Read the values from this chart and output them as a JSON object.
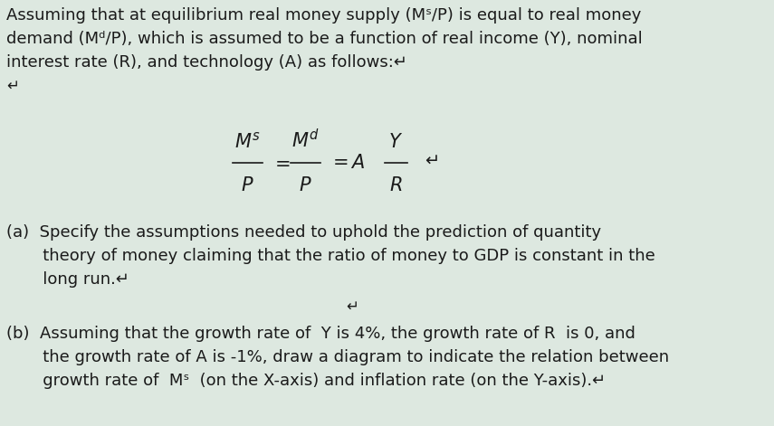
{
  "background_color": "#dde8e0",
  "text_color": "#1a1a1a",
  "figsize": [
    8.55,
    4.71
  ],
  "dpi": 100,
  "line1": "Assuming that at equilibrium real money supply (Mˢ/P) is equal to real money",
  "line2": "demand (Mᵈ/P), which is assumed to be a function of real income (Y), nominal",
  "line3": "interest rate (R), and technology (A) as follows:↵",
  "para_a_line1": "(a)  Specify the assumptions needed to uphold the prediction of quantity",
  "para_a_line2": "       theory of money claiming that the ratio of money to GDP is constant in the",
  "para_a_line3": "       long run.↵",
  "para_b_line1": "(b)  Assuming that the growth rate of  Y is 4%, the growth rate of R  is 0, and",
  "para_b_line2": "       the growth rate of A is -1%, draw a diagram to indicate the relation between",
  "para_b_line3": "       growth rate of  Mˢ  (on the X-axis) and inflation rate (on the Y-axis).↵",
  "font_size_main": 13.0,
  "font_size_formula": 15
}
